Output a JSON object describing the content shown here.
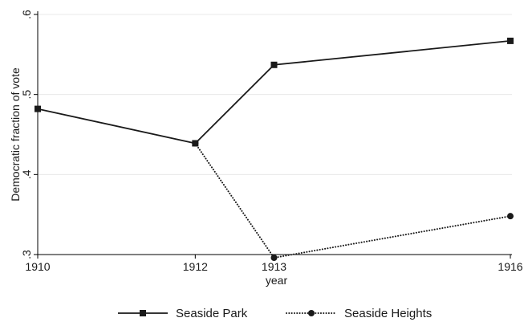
{
  "chart_data": {
    "type": "line",
    "xlabel": "year",
    "ylabel": "Democratic fraction of vote",
    "x_ticks": [
      1910,
      1912,
      1913,
      1916
    ],
    "x_tick_labels": [
      "1910",
      "1912",
      "1913",
      "1916"
    ],
    "y_ticks": [
      0.3,
      0.4,
      0.5,
      0.6
    ],
    "y_tick_labels": [
      ".3",
      ".4",
      ".5",
      ".6"
    ],
    "xlim": [
      1910,
      1916
    ],
    "ylim": [
      0.3,
      0.6
    ],
    "grid": "horizontal",
    "legend_position": "bottom",
    "series": [
      {
        "name": "Seaside Park",
        "x": [
          1910,
          1912,
          1913,
          1916
        ],
        "values": [
          0.482,
          0.439,
          0.537,
          0.567
        ],
        "line_style": "solid",
        "marker": "square",
        "color": "#1a1a1a"
      },
      {
        "name": "Seaside Heights",
        "x": [
          1912,
          1913,
          1916
        ],
        "values": [
          0.439,
          0.296,
          0.348
        ],
        "line_style": "dotted",
        "marker": "circle",
        "color": "#1a1a1a"
      }
    ]
  }
}
